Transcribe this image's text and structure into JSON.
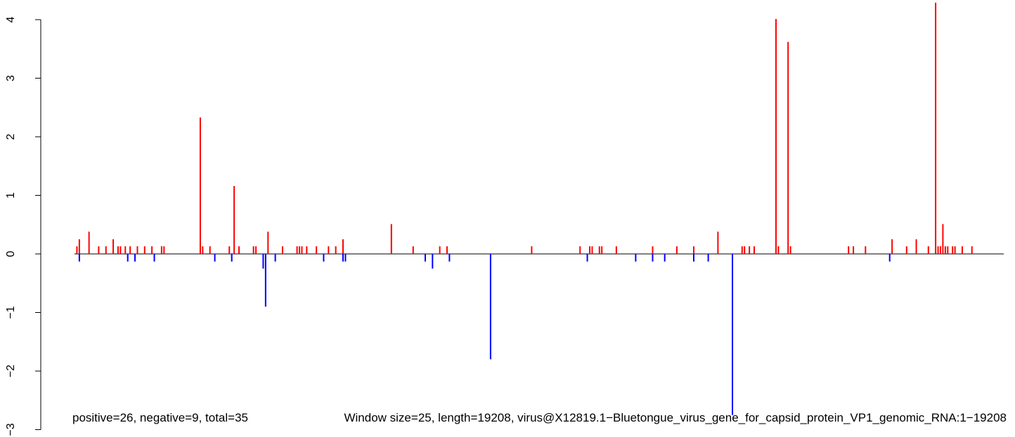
{
  "chart_data": {
    "type": "bar",
    "ylim": [
      -3,
      4.3
    ],
    "y_ticks": [
      -3,
      -2,
      -1,
      0,
      1,
      2,
      3,
      4
    ],
    "xlim": [
      0,
      19208
    ],
    "grid": false,
    "colors": {
      "positive": "#ff0000",
      "negative": "#0000ff",
      "baseline": "#000000"
    },
    "annotations": [
      "positive=26, negative=9, total=35",
      "Window size=25, length=19208, virus@X12819.1−Bluetongue_virus_gene_for_capsid_protein_VP1_genomic_RNA:1−19208"
    ],
    "series": [
      {
        "name": "positive",
        "x": [
          50,
          100,
          300,
          500,
          650,
          800,
          900,
          950,
          1050,
          1150,
          1300,
          1450,
          1600,
          1800,
          1850,
          2600,
          2650,
          2800,
          3200,
          3300,
          3400,
          3700,
          3750,
          4000,
          4300,
          4600,
          4650,
          4700,
          4800,
          5000,
          5250,
          5400,
          5550,
          6550,
          7000,
          7550,
          7700,
          9450,
          10450,
          10650,
          10700,
          10850,
          10900,
          11200,
          11950,
          12450,
          12800,
          13300,
          13800,
          13850,
          13950,
          14050,
          14500,
          14550,
          14750,
          14800,
          16000,
          16100,
          16350,
          16900,
          17200,
          17400,
          17650,
          17800,
          17850,
          17900,
          17950,
          18000,
          18050,
          18150,
          18200,
          18350,
          18550
        ],
        "values": [
          0.13,
          0.25,
          0.38,
          0.13,
          0.13,
          0.25,
          0.13,
          0.13,
          0.13,
          0.13,
          0.13,
          0.13,
          0.13,
          0.13,
          0.13,
          2.33,
          0.13,
          0.13,
          0.13,
          1.16,
          0.13,
          0.13,
          0.13,
          0.38,
          0.13,
          0.13,
          0.13,
          0.13,
          0.13,
          0.13,
          0.13,
          0.13,
          0.25,
          0.51,
          0.13,
          0.13,
          0.13,
          0.13,
          0.13,
          0.13,
          0.13,
          0.13,
          0.13,
          0.13,
          0.13,
          0.13,
          0.13,
          0.38,
          0.13,
          0.13,
          0.13,
          0.13,
          4.01,
          0.13,
          3.62,
          0.13,
          0.13,
          0.13,
          0.13,
          0.25,
          0.13,
          0.25,
          0.13,
          4.29,
          0.13,
          0.13,
          0.51,
          0.13,
          0.13,
          0.13,
          0.13,
          0.13,
          0.13
        ]
      },
      {
        "name": "negative",
        "x": [
          100,
          1100,
          1250,
          1650,
          2900,
          3250,
          3900,
          3950,
          4150,
          5150,
          5550,
          5600,
          7250,
          7400,
          7750,
          8600,
          10600,
          11600,
          11950,
          12200,
          12800,
          13100,
          13600,
          16850
        ],
        "values": [
          -0.13,
          -0.13,
          -0.13,
          -0.13,
          -0.13,
          -0.13,
          -0.25,
          -0.9,
          -0.13,
          -0.13,
          -0.13,
          -0.13,
          -0.13,
          -0.25,
          -0.13,
          -1.8,
          -0.13,
          -0.13,
          -0.13,
          -0.13,
          -0.13,
          -0.13,
          -2.75,
          -0.13
        ]
      }
    ]
  }
}
